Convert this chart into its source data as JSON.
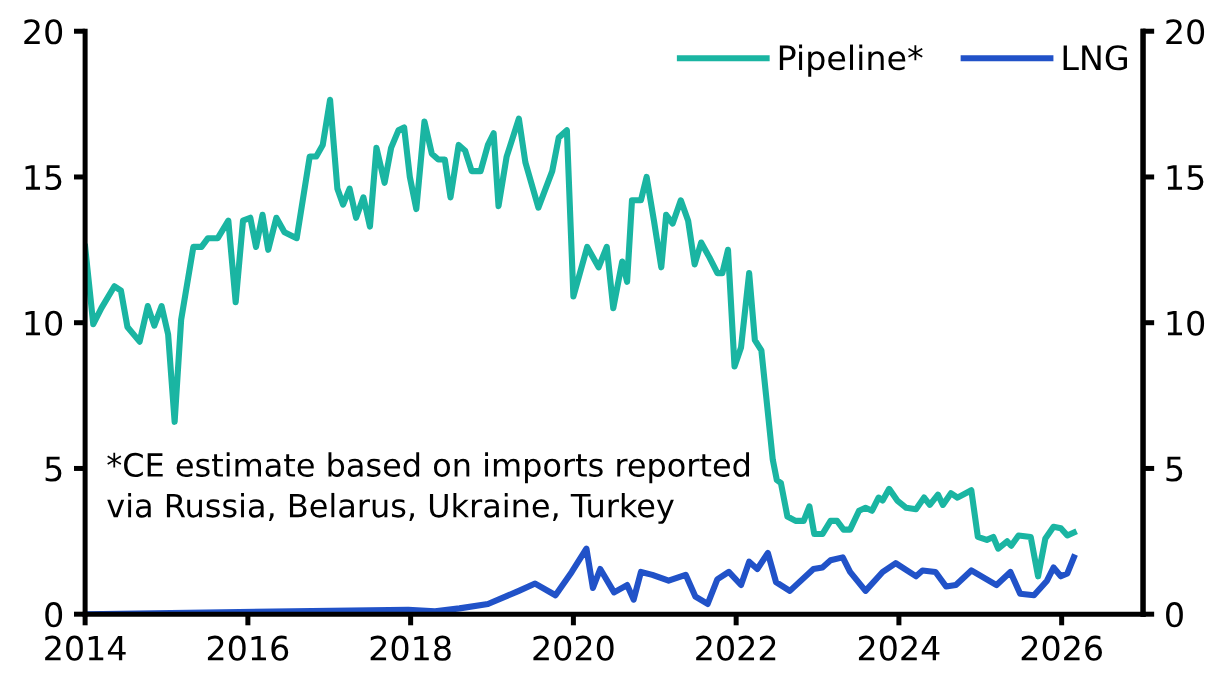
{
  "chart_data": {
    "type": "line",
    "xlim": [
      2014,
      2027
    ],
    "xticks": [
      2014,
      2016,
      2018,
      2020,
      2022,
      2024,
      2026
    ],
    "ylim": [
      0,
      20
    ],
    "yticks": [
      0,
      5,
      10,
      15,
      20
    ],
    "y2lim": [
      0,
      20
    ],
    "y2ticks": [
      0,
      5,
      10,
      15,
      20
    ],
    "grid": false,
    "legend": "top right",
    "marker": "none",
    "line_style": "solid",
    "annotations": [
      "*CE estimate based on imports reported\nvia Russia, Belarus, Ukraine, Turkey"
    ],
    "series": [
      {
        "name": "Pipeline*",
        "color": "#1ab5a2",
        "x": [
          2014.0,
          2014.1,
          2014.2,
          2014.36,
          2014.44,
          2014.52,
          2014.67,
          2014.77,
          2014.85,
          2014.94,
          2015.02,
          2015.1,
          2015.18,
          2015.33,
          2015.43,
          2015.51,
          2015.63,
          2015.76,
          2015.85,
          2015.94,
          2016.03,
          2016.1,
          2016.18,
          2016.25,
          2016.35,
          2016.45,
          2016.6,
          2016.76,
          2016.84,
          2016.92,
          2017.01,
          2017.1,
          2017.17,
          2017.25,
          2017.33,
          2017.42,
          2017.5,
          2017.58,
          2017.68,
          2017.76,
          2017.85,
          2017.92,
          2017.99,
          2018.07,
          2018.17,
          2018.26,
          2018.34,
          2018.42,
          2018.49,
          2018.59,
          2018.67,
          2018.75,
          2018.86,
          2018.95,
          2019.02,
          2019.08,
          2019.18,
          2019.33,
          2019.41,
          2019.57,
          2019.74,
          2019.82,
          2019.92,
          2020.0,
          2020.17,
          2020.31,
          2020.41,
          2020.49,
          2020.6,
          2020.66,
          2020.72,
          2020.83,
          2020.9,
          2020.99,
          2021.08,
          2021.14,
          2021.22,
          2021.32,
          2021.41,
          2021.49,
          2021.57,
          2021.67,
          2021.77,
          2021.83,
          2021.9,
          2021.98,
          2022.06,
          2022.16,
          2022.23,
          2022.31,
          2022.45,
          2022.5,
          2022.55,
          2022.63,
          2022.73,
          2022.83,
          2022.9,
          2022.96,
          2023.06,
          2023.16,
          2023.24,
          2023.32,
          2023.4,
          2023.51,
          2023.59,
          2023.67,
          2023.75,
          2023.8,
          2023.88,
          2023.98,
          2024.09,
          2024.21,
          2024.31,
          2024.38,
          2024.48,
          2024.54,
          2024.64,
          2024.72,
          2024.89,
          2024.97,
          2025.08,
          2025.16,
          2025.22,
          2025.33,
          2025.38,
          2025.47,
          2025.62,
          2025.71,
          2025.8,
          2025.9,
          2025.99,
          2026.07,
          2026.15
        ],
        "values": [
          12.6,
          9.95,
          10.5,
          11.25,
          11.1,
          9.85,
          9.35,
          10.57,
          9.9,
          10.57,
          9.6,
          6.6,
          10.1,
          12.6,
          12.6,
          12.9,
          12.9,
          13.5,
          10.7,
          13.5,
          13.6,
          12.6,
          13.7,
          12.5,
          13.6,
          13.1,
          12.9,
          15.7,
          15.7,
          16.1,
          17.65,
          14.6,
          14.05,
          14.6,
          13.6,
          14.3,
          13.3,
          16.0,
          14.8,
          16.0,
          16.6,
          16.7,
          15.0,
          13.9,
          16.9,
          15.8,
          15.6,
          15.6,
          14.3,
          16.1,
          15.9,
          15.2,
          15.2,
          16.1,
          16.5,
          14.0,
          15.7,
          17.0,
          15.5,
          13.95,
          15.2,
          16.35,
          16.6,
          10.9,
          12.6,
          11.9,
          12.6,
          10.5,
          12.1,
          11.4,
          14.2,
          14.2,
          15.0,
          13.5,
          11.9,
          13.7,
          13.4,
          14.2,
          13.5,
          12.0,
          12.75,
          12.25,
          11.7,
          11.7,
          12.5,
          8.5,
          9.15,
          11.7,
          9.4,
          9.05,
          5.3,
          4.6,
          4.5,
          3.35,
          3.2,
          3.2,
          3.7,
          2.75,
          2.75,
          3.2,
          3.2,
          2.9,
          2.9,
          3.55,
          3.65,
          3.55,
          4.0,
          3.9,
          4.3,
          3.9,
          3.65,
          3.6,
          4.0,
          3.75,
          4.1,
          3.75,
          4.15,
          4.0,
          4.25,
          2.65,
          2.55,
          2.65,
          2.25,
          2.5,
          2.35,
          2.7,
          2.65,
          1.3,
          2.6,
          3.0,
          2.95,
          2.7,
          2.8
        ]
      },
      {
        "name": "LNG",
        "color": "#2152c8",
        "x": [
          2014.0,
          2017.97,
          2018.3,
          2018.6,
          2018.95,
          2019.33,
          2019.53,
          2019.78,
          2019.98,
          2020.16,
          2020.24,
          2020.33,
          2020.5,
          2020.66,
          2020.74,
          2020.83,
          2020.97,
          2021.17,
          2021.38,
          2021.5,
          2021.65,
          2021.77,
          2021.91,
          2022.06,
          2022.16,
          2022.26,
          2022.39,
          2022.49,
          2022.66,
          2022.95,
          2023.06,
          2023.16,
          2023.31,
          2023.4,
          2023.59,
          2023.8,
          2023.96,
          2024.21,
          2024.29,
          2024.45,
          2024.58,
          2024.7,
          2024.89,
          2025.2,
          2025.37,
          2025.49,
          2025.66,
          2025.82,
          2025.9,
          2025.99,
          2026.07,
          2026.15
        ],
        "values": [
          0,
          0.15,
          0.1,
          0.2,
          0.35,
          0.8,
          1.05,
          0.65,
          1.45,
          2.25,
          0.9,
          1.55,
          0.75,
          1.0,
          0.5,
          1.45,
          1.35,
          1.15,
          1.35,
          0.6,
          0.35,
          1.2,
          1.45,
          1.0,
          1.8,
          1.55,
          2.1,
          1.1,
          0.8,
          1.55,
          1.6,
          1.85,
          1.95,
          1.45,
          0.8,
          1.45,
          1.75,
          1.3,
          1.5,
          1.45,
          0.95,
          1.0,
          1.5,
          1.0,
          1.45,
          0.7,
          0.65,
          1.15,
          1.6,
          1.3,
          1.4,
          1.95
        ]
      }
    ]
  }
}
